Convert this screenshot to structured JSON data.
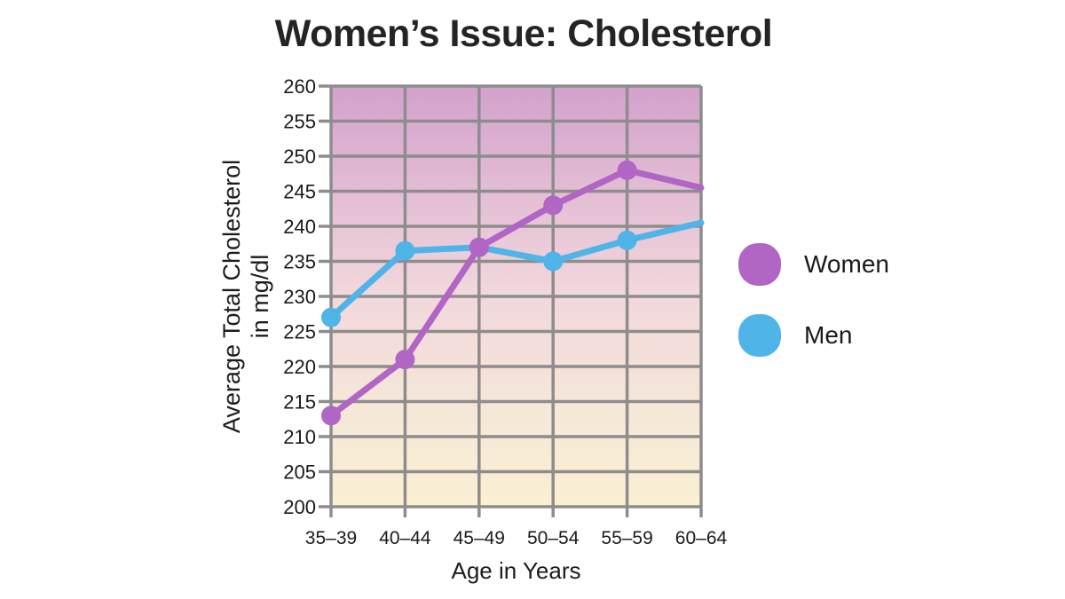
{
  "chart_data": {
    "type": "line",
    "title": "Women’s Issue: Cholesterol",
    "xlabel": "Age in Years",
    "ylabel": "Average Total Cholesterol in mg/dl",
    "ylabel_lines": [
      "Average Total Cholesterol",
      "in mg/dl"
    ],
    "categories": [
      "35–39",
      "40–44",
      "45–49",
      "50–54",
      "55–59",
      "60–64"
    ],
    "series": [
      {
        "name": "Women",
        "color": "#b165c5",
        "values": [
          213,
          221,
          237,
          243,
          248,
          245.5
        ]
      },
      {
        "name": "Men",
        "color": "#4fb4e8",
        "values": [
          227,
          236.5,
          237,
          235,
          238,
          240.5
        ]
      }
    ],
    "ylim": [
      200,
      260
    ],
    "ytick_step": 5,
    "grid": true,
    "legend_position": "right",
    "styles": {
      "gridline_color": "#8d8d8d",
      "gridline_width": 3.5,
      "tick_label_color": "#1a1a1a",
      "plot_bg_gradient": [
        "#d3a1cc",
        "#f2d8dc",
        "#f6e8d8",
        "#faf0d2"
      ],
      "line_width": 7,
      "marker_radius": 11,
      "markers_on_last_point": false
    }
  }
}
